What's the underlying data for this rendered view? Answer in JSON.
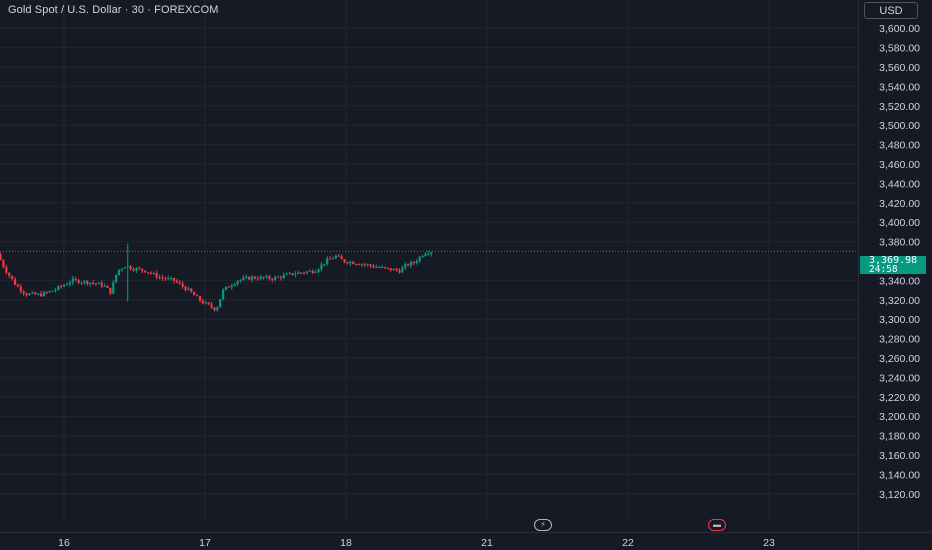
{
  "header": {
    "title": "Gold Spot / U.S. Dollar · 30 · FOREXCOM",
    "currency": "USD"
  },
  "price_tag": {
    "price": "3,369.98",
    "countdown": "24:58"
  },
  "events": [
    {
      "icon": "lightning-icon"
    },
    {
      "icon": "flag-icon"
    }
  ],
  "colors": {
    "background": "#161a25",
    "grid": "#222631",
    "up": "#089981",
    "down": "#f23645",
    "text": "#d1d4dc"
  },
  "chart_data": {
    "type": "candlestick",
    "y_ticks": [
      "3,600.00",
      "3,580.00",
      "3,560.00",
      "3,540.00",
      "3,520.00",
      "3,500.00",
      "3,480.00",
      "3,460.00",
      "3,440.00",
      "3,420.00",
      "3,400.00",
      "3,380.00",
      "3,340.00",
      "3,320.00",
      "3,300.00",
      "3,280.00",
      "3,260.00",
      "3,240.00",
      "3,220.00",
      "3,200.00",
      "3,180.00",
      "3,160.00",
      "3,140.00",
      "3,120.00"
    ],
    "y_tick_values": [
      3600,
      3580,
      3560,
      3540,
      3520,
      3500,
      3480,
      3460,
      3440,
      3420,
      3400,
      3380,
      3340,
      3320,
      3300,
      3280,
      3260,
      3240,
      3220,
      3200,
      3180,
      3160,
      3140,
      3120
    ],
    "ylim": [
      3106,
      3624
    ],
    "x_ticks": [
      "16",
      "17",
      "18",
      "21",
      "22",
      "23"
    ],
    "x_tick_positions": [
      15.8,
      16.8,
      17.8,
      18.8,
      19.8,
      20.8
    ],
    "xlim": [
      15.35,
      21.25
    ],
    "last_price": 3369.98,
    "anchors": [
      [
        15.35,
        3367
      ],
      [
        15.4,
        3352
      ],
      [
        15.48,
        3335
      ],
      [
        15.55,
        3326
      ],
      [
        15.65,
        3325
      ],
      [
        15.75,
        3330
      ],
      [
        15.88,
        3340
      ],
      [
        16.0,
        3338
      ],
      [
        16.1,
        3335
      ],
      [
        16.15,
        3328
      ],
      [
        16.2,
        3350
      ],
      [
        16.25,
        3355
      ],
      [
        16.32,
        3352
      ],
      [
        16.4,
        3350
      ],
      [
        16.5,
        3343
      ],
      [
        16.6,
        3340
      ],
      [
        16.7,
        3330
      ],
      [
        16.78,
        3320
      ],
      [
        16.82,
        3316
      ],
      [
        16.9,
        3310
      ],
      [
        16.95,
        3330
      ],
      [
        17.05,
        3340
      ],
      [
        17.15,
        3343
      ],
      [
        17.3,
        3342
      ],
      [
        17.45,
        3347
      ],
      [
        17.6,
        3350
      ],
      [
        17.68,
        3360
      ],
      [
        17.75,
        3365
      ],
      [
        17.8,
        3360
      ],
      [
        17.9,
        3358
      ],
      [
        18.0,
        3355
      ],
      [
        18.1,
        3352
      ],
      [
        18.2,
        3350
      ],
      [
        18.25,
        3356
      ],
      [
        18.3,
        3358
      ],
      [
        18.38,
        3369
      ],
      [
        18.42,
        3370
      ]
    ],
    "wick_extremes": [
      {
        "x": 16.25,
        "high": 3378,
        "low": 3318
      }
    ]
  }
}
